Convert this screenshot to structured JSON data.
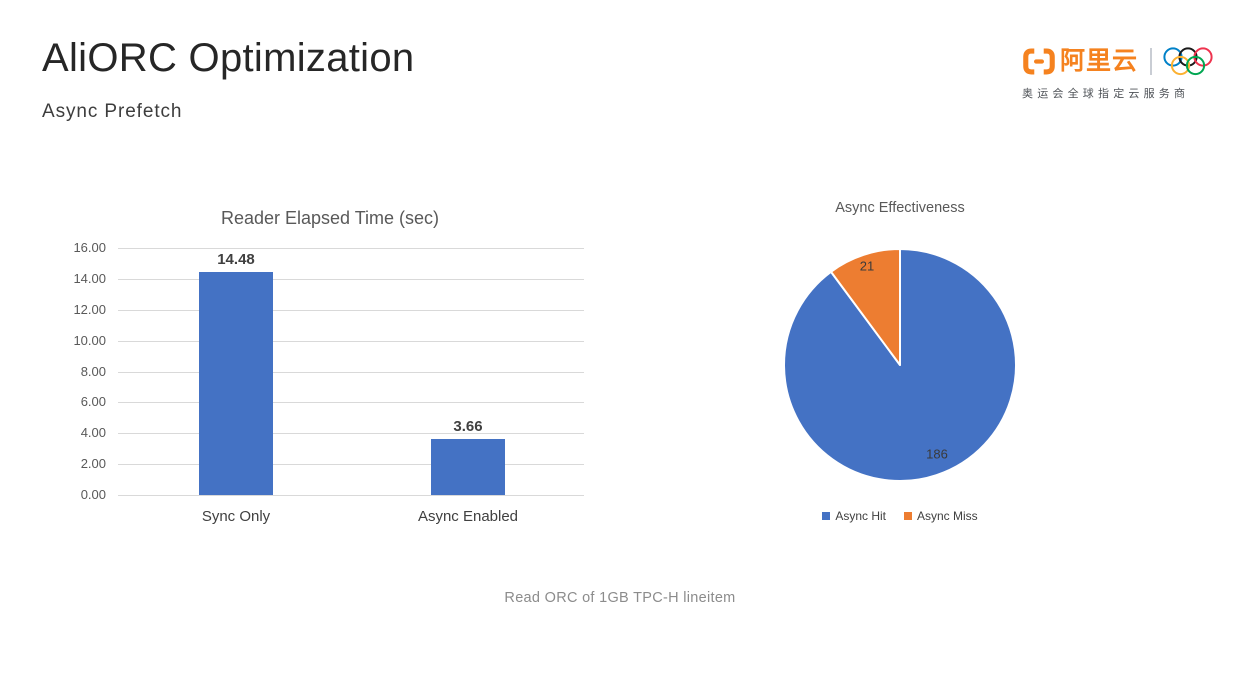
{
  "slide": {
    "title": "AliORC Optimization",
    "subtitle": "Async Prefetch",
    "caption": "Read ORC of 1GB TPC-H lineitem"
  },
  "logo": {
    "brand_text": "阿里云",
    "tagline": "奥运会全球指定云服务商",
    "brand_color": "#F5821F",
    "divider_color": "#C9CDD4",
    "olympic_ring_colors": {
      "blue": "#0081C8",
      "black": "#1A1A1A",
      "red": "#EE334E",
      "yellow": "#FCB131",
      "green": "#00A651"
    }
  },
  "chart_data": [
    {
      "type": "bar",
      "title": "Reader Elapsed Time (sec)",
      "categories": [
        "Sync Only",
        "Async Enabled"
      ],
      "values": [
        14.48,
        3.66
      ],
      "data_labels": [
        "14.48",
        "3.66"
      ],
      "ylim": [
        0,
        16
      ],
      "ytick_step": 2,
      "yticks": [
        "16.00",
        "14.00",
        "12.00",
        "10.00",
        "8.00",
        "6.00",
        "4.00",
        "2.00",
        "0.00"
      ],
      "bar_color": "#4472C4",
      "grid_color": "#D9D9D9",
      "grid": true,
      "legend_position": "none"
    },
    {
      "type": "pie",
      "title": "Async Effectiveness",
      "legend_position": "bottom",
      "start_angle_deg": 0,
      "direction": "clockwise",
      "slices": [
        {
          "label": "Async Hit",
          "value": 186,
          "color": "#4472C4"
        },
        {
          "label": "Async Miss",
          "value": 21,
          "color": "#ED7D31"
        }
      ]
    }
  ]
}
